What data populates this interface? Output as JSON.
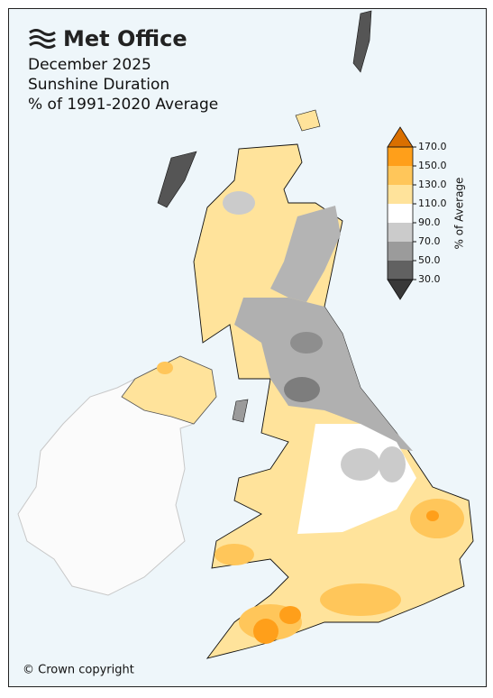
{
  "header": {
    "logo": "Met Office",
    "title": [
      "December 2025",
      "Sunshine Duration",
      "% of 1991-2020 Average"
    ]
  },
  "legend": {
    "label": "% of Average",
    "ticks": [
      {
        "value": 30,
        "label": "30.0"
      },
      {
        "value": 50,
        "label": "50.0"
      },
      {
        "value": 70,
        "label": "70.0"
      },
      {
        "value": 90,
        "label": "90.0"
      },
      {
        "value": 110,
        "label": "110.0"
      },
      {
        "value": 130,
        "label": "130.0"
      },
      {
        "value": 150,
        "label": "150.0"
      },
      {
        "value": 170,
        "label": "170.0"
      }
    ],
    "colors": [
      "#616161",
      "#9b9b9b",
      "#cbcbcb",
      "#ffffff",
      "#ffe39b",
      "#ffc65a",
      "#ff9f1a"
    ],
    "under": "#383838",
    "over": "#d96f00"
  },
  "footer": {
    "copyright": "© Crown copyright"
  }
}
